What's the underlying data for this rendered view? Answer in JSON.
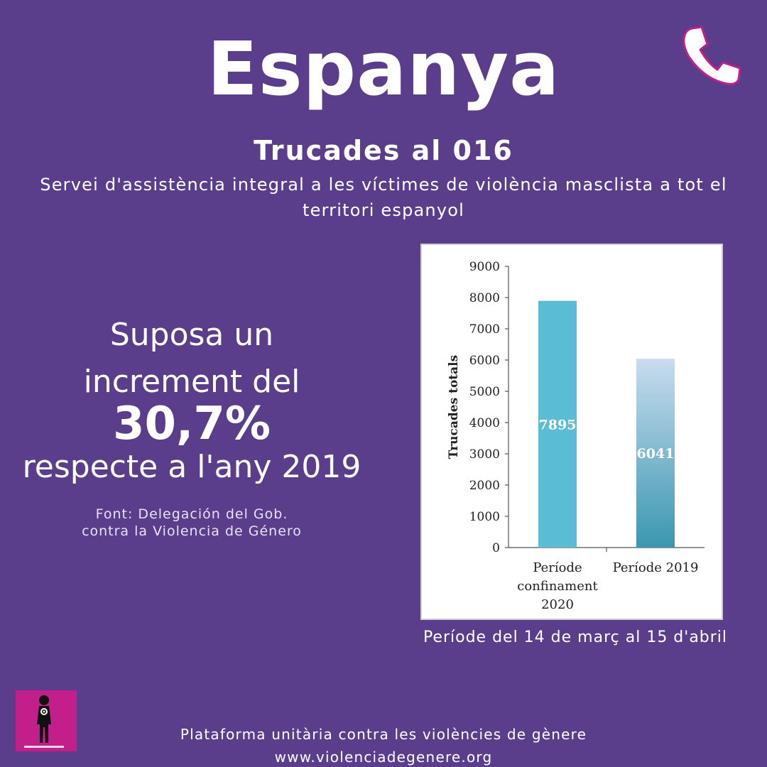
{
  "header": {
    "title": "Espanya",
    "subtitle": "Trucades al 016",
    "description": "Servei d'assistència integral a les víctimes de violència masclista a tot el territori espanyol"
  },
  "stat": {
    "line1": "Suposa un",
    "line2": "increment del",
    "value": "30,7%",
    "line4": "respecte a l'any 2019"
  },
  "source": {
    "line1": "Font:  Delegación del Gob.",
    "line2": "contra la Violencia de Género"
  },
  "caption": "Període del 14 de març al 15 d'abril",
  "footer": {
    "line1": "Plataforma unitària contra les violències de gènere",
    "line2": "www.violenciadegenere.org"
  },
  "icons": {
    "phone": "phone-icon",
    "logo": "prou-agressions-logo"
  },
  "colors": {
    "background": "#5a3e8c",
    "bar_2020": "#5bbcd6",
    "bar_2019_top": "#c9dcee",
    "bar_2019_bottom": "#3a97b0",
    "logo": "#c21f8a"
  },
  "chart_data": {
    "type": "bar",
    "categories": [
      [
        "Període",
        "confinament",
        "2020"
      ],
      [
        "Període 2019"
      ]
    ],
    "values": [
      7895,
      6041
    ],
    "data_labels": [
      "7895",
      "6041"
    ],
    "ylabel": "Trucades totals",
    "ylim": [
      0,
      9000
    ],
    "yticks": [
      0,
      1000,
      2000,
      3000,
      4000,
      5000,
      6000,
      7000,
      8000,
      9000
    ],
    "grid": false,
    "legend": "none"
  }
}
